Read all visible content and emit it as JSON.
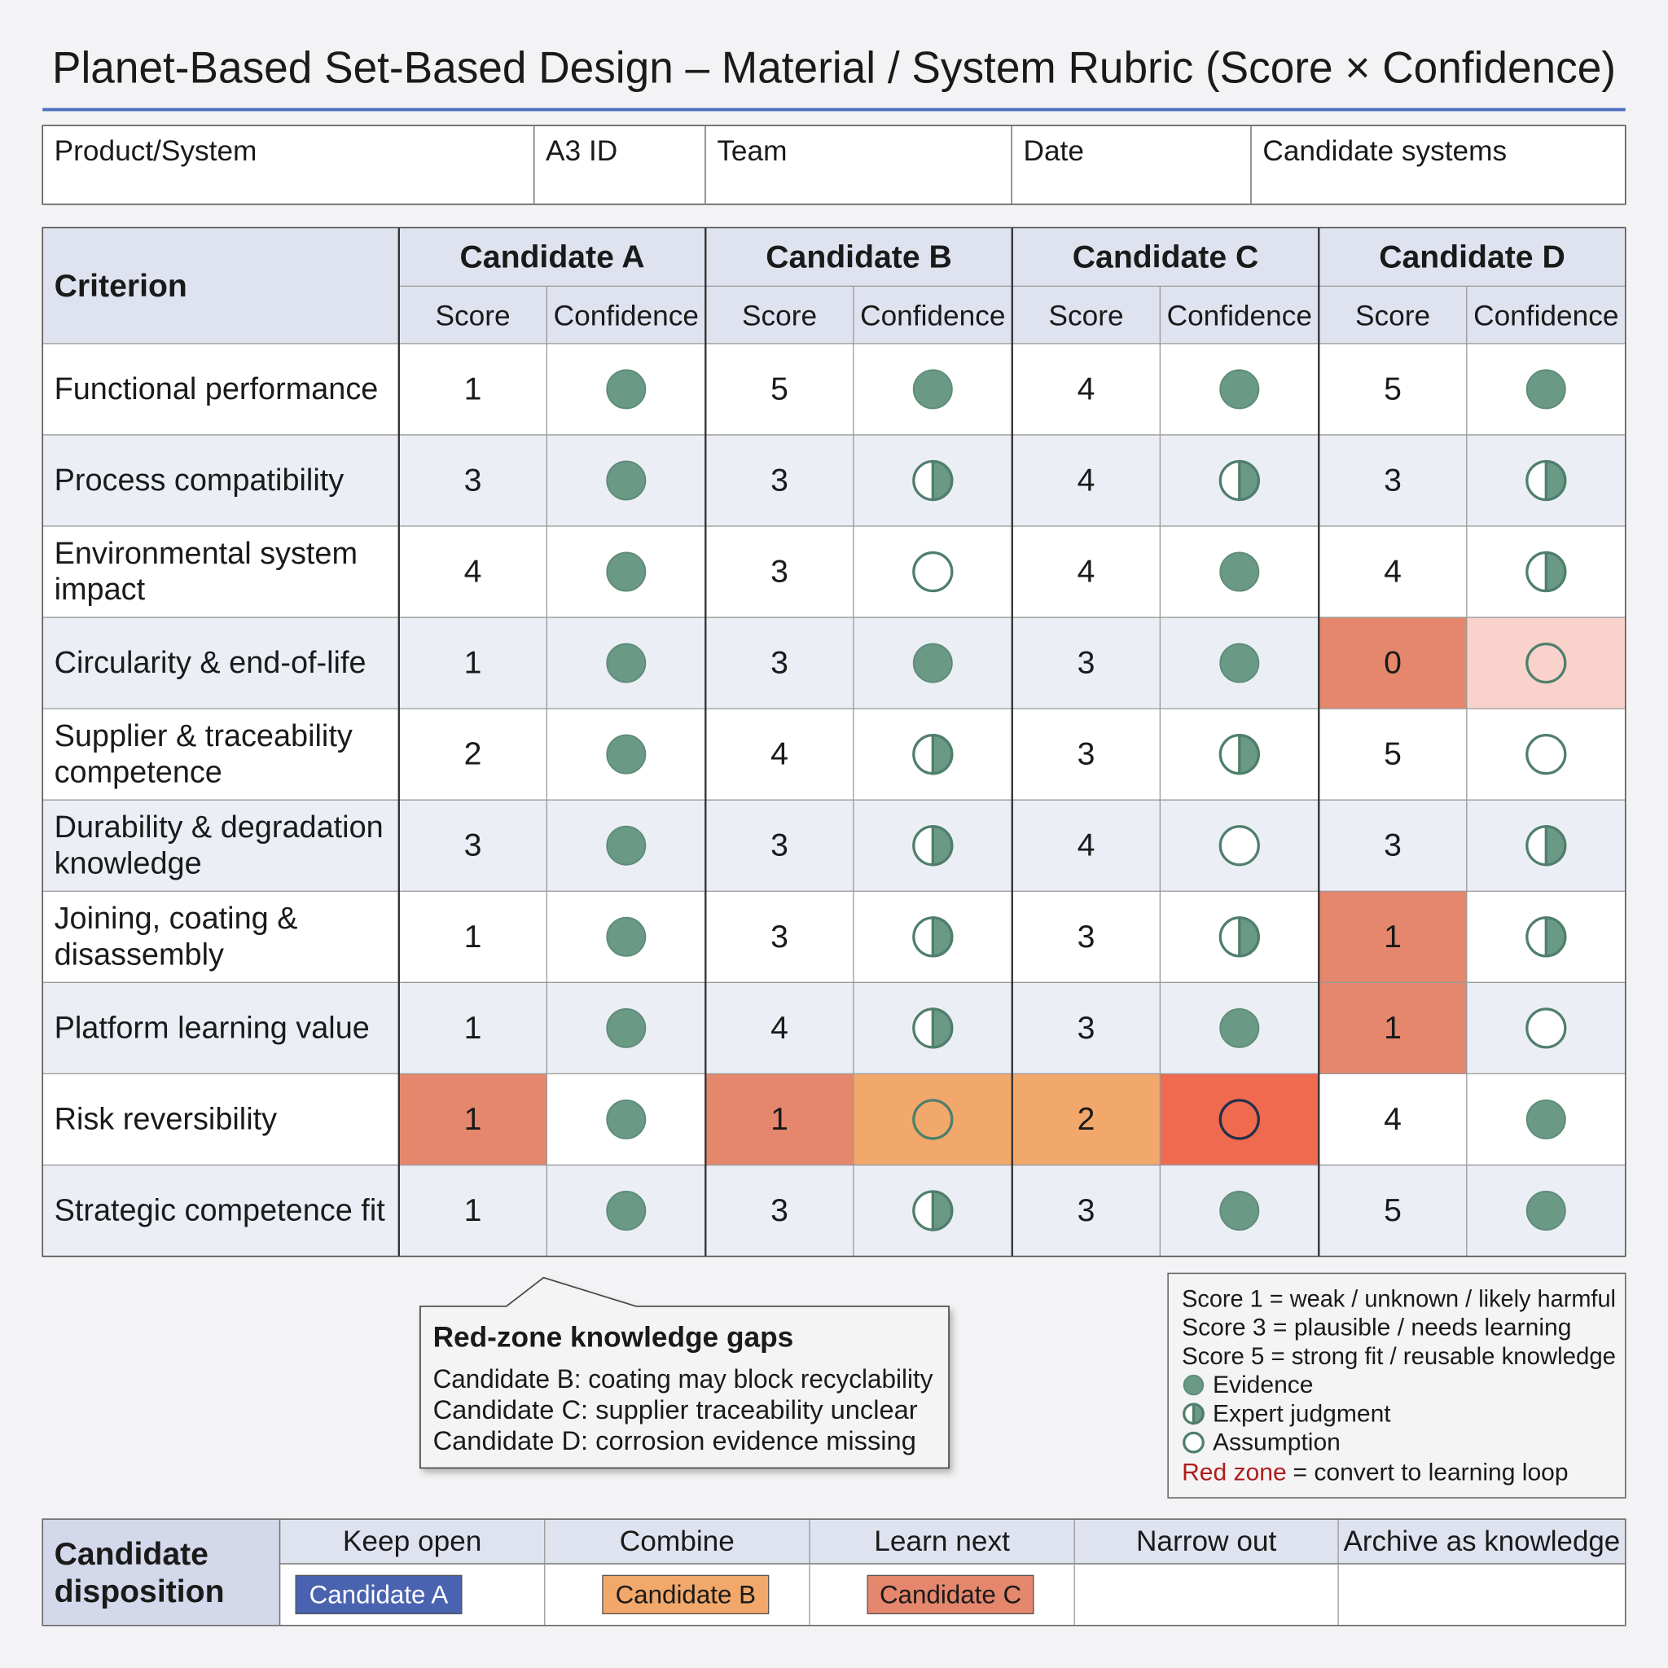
{
  "title": "Planet-Based Set-Based Design – Material / System Rubric (Score × Confidence)",
  "header_fields": [
    "Product/System",
    "A3 ID",
    "Team",
    "Date",
    "Candidate systems"
  ],
  "table": {
    "criterion_header": "Criterion",
    "candidates": [
      "Candidate A",
      "Candidate B",
      "Candidate C",
      "Candidate D"
    ],
    "subheaders": [
      "Score",
      "Confidence"
    ],
    "rows": [
      {
        "criterion": "Functional performance",
        "cells": [
          {
            "score": 1,
            "confidence": "Evidence"
          },
          {
            "score": 5,
            "confidence": "Evidence"
          },
          {
            "score": 4,
            "confidence": "Evidence"
          },
          {
            "score": 5,
            "confidence": "Evidence"
          }
        ]
      },
      {
        "criterion": "Process compatibility",
        "cells": [
          {
            "score": 3,
            "confidence": "Evidence"
          },
          {
            "score": 3,
            "confidence": "Expert judgment"
          },
          {
            "score": 4,
            "confidence": "Expert judgment"
          },
          {
            "score": 3,
            "confidence": "Expert judgment"
          }
        ]
      },
      {
        "criterion": "Environmental system impact",
        "cells": [
          {
            "score": 4,
            "confidence": "Evidence"
          },
          {
            "score": 3,
            "confidence": "Assumption"
          },
          {
            "score": 4,
            "confidence": "Evidence"
          },
          {
            "score": 4,
            "confidence": "Expert judgment"
          }
        ]
      },
      {
        "criterion": "Circularity & end-of-life",
        "cells": [
          {
            "score": 1,
            "confidence": "Evidence"
          },
          {
            "score": 3,
            "confidence": "Evidence"
          },
          {
            "score": 3,
            "confidence": "Evidence"
          },
          {
            "score": 0,
            "confidence": "Assumption",
            "score_fill": "#e5876c",
            "confidence_fill": "#f9d3cb"
          }
        ]
      },
      {
        "criterion": "Supplier & traceability competence",
        "cells": [
          {
            "score": 2,
            "confidence": "Evidence"
          },
          {
            "score": 4,
            "confidence": "Expert judgment"
          },
          {
            "score": 3,
            "confidence": "Expert judgment"
          },
          {
            "score": 5,
            "confidence": "Assumption"
          }
        ]
      },
      {
        "criterion": "Durability & degradation knowledge",
        "cells": [
          {
            "score": 3,
            "confidence": "Evidence"
          },
          {
            "score": 3,
            "confidence": "Expert judgment"
          },
          {
            "score": 4,
            "confidence": "Assumption"
          },
          {
            "score": 3,
            "confidence": "Expert judgment"
          }
        ]
      },
      {
        "criterion": "Joining, coating & disassembly",
        "cells": [
          {
            "score": 1,
            "confidence": "Evidence"
          },
          {
            "score": 3,
            "confidence": "Expert judgment"
          },
          {
            "score": 3,
            "confidence": "Expert judgment"
          },
          {
            "score": 1,
            "confidence": "Expert judgment",
            "score_fill": "#e5876c"
          }
        ]
      },
      {
        "criterion": "Platform learning value",
        "cells": [
          {
            "score": 1,
            "confidence": "Evidence"
          },
          {
            "score": 4,
            "confidence": "Expert judgment"
          },
          {
            "score": 3,
            "confidence": "Evidence"
          },
          {
            "score": 1,
            "confidence": "Assumption",
            "score_fill": "#e5876c"
          }
        ]
      },
      {
        "criterion": "Risk reversibility",
        "cells": [
          {
            "score": 1,
            "confidence": "Evidence",
            "score_fill": "#e5876c"
          },
          {
            "score": 1,
            "confidence": "Assumption",
            "score_fill": "#e5876c",
            "confidence_fill": "#f2a86a"
          },
          {
            "score": 2,
            "confidence": "Assumption",
            "score_fill": "#f2a86a",
            "confidence_fill": "#ef6a4f"
          },
          {
            "score": 4,
            "confidence": "Evidence"
          }
        ]
      },
      {
        "criterion": "Strategic competence fit",
        "cells": [
          {
            "score": 1,
            "confidence": "Evidence"
          },
          {
            "score": 3,
            "confidence": "Expert judgment"
          },
          {
            "score": 3,
            "confidence": "Evidence"
          },
          {
            "score": 5,
            "confidence": "Evidence"
          }
        ]
      }
    ]
  },
  "callout": {
    "title": "Red-zone knowledge gaps",
    "lines": [
      "Candidate B: coating may block recyclability",
      "Candidate C: supplier traceability unclear",
      "Candidate D: corrosion evidence missing"
    ]
  },
  "legend": {
    "score_lines": [
      "Score 1 = weak / unknown / likely harmful",
      "Score 3 = plausible / needs learning",
      "Score 5 = strong fit / reusable knowledge"
    ],
    "confidence_levels": [
      "Evidence",
      "Expert judgment",
      "Assumption"
    ],
    "red_zone": {
      "term": "Red zone",
      "text": "= convert to learning loop",
      "color": "#b01c1c"
    }
  },
  "disposition": {
    "label": "Candidate disposition",
    "columns": [
      {
        "name": "Keep open",
        "chip": "Candidate A",
        "color": "#4a63b0"
      },
      {
        "name": "Combine",
        "chip": "Candidate B",
        "color": "#f2a86a"
      },
      {
        "name": "Learn next",
        "chip": "Candidate C",
        "color": "#e5876c"
      },
      {
        "name": "Narrow out"
      },
      {
        "name": "Archive as knowledge"
      }
    ]
  }
}
